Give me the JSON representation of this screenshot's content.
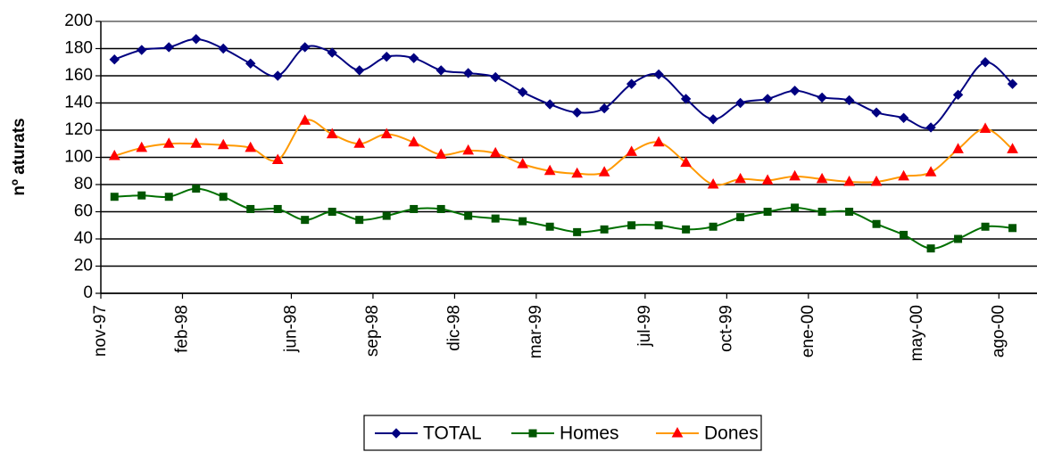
{
  "chart_data": {
    "type": "line",
    "y_label": "nº aturats",
    "x": [
      0.5,
      1.5,
      2.5,
      3.5,
      4.5,
      5.5,
      6.5,
      7.5,
      8.5,
      9.5,
      10.5,
      11.5,
      12.5,
      13.5,
      14.5,
      15.5,
      16.5,
      17.5,
      18.5,
      19.5,
      20.5,
      21.5,
      22.5,
      23.5,
      24.5,
      25.5,
      26.5,
      27.5,
      28.5,
      29.5,
      30.5,
      31.5,
      32.5,
      33.5
    ],
    "xlim": [
      0,
      34.4
    ],
    "xticks": [
      {
        "value": 0,
        "label": "nov-97"
      },
      {
        "value": 3,
        "label": "feb-98"
      },
      {
        "value": 7,
        "label": "jun-98"
      },
      {
        "value": 10,
        "label": "sep-98"
      },
      {
        "value": 13,
        "label": "dic-98"
      },
      {
        "value": 16,
        "label": "mar-99"
      },
      {
        "value": 20,
        "label": "jul-99"
      },
      {
        "value": 23,
        "label": "oct-99"
      },
      {
        "value": 26,
        "label": "ene-00"
      },
      {
        "value": 30,
        "label": "may-00"
      },
      {
        "value": 33,
        "label": "ago-00"
      }
    ],
    "ylim": [
      0,
      200
    ],
    "yticks": [
      0,
      20,
      40,
      60,
      80,
      100,
      120,
      140,
      160,
      180,
      200
    ],
    "grid": true,
    "legend": "bottom",
    "series": [
      {
        "name": "TOTAL",
        "color": "#000080",
        "marker_color": "#000080",
        "marker": "diamond",
        "values": [
          172,
          179,
          181,
          187,
          180,
          169,
          160,
          181,
          177,
          164,
          174,
          173,
          164,
          162,
          159,
          148,
          139,
          133,
          136,
          154,
          161,
          143,
          128,
          140,
          143,
          149,
          144,
          142,
          133,
          129,
          122,
          146,
          170,
          154
        ]
      },
      {
        "name": "Homes",
        "color": "#007000",
        "marker_color": "#005500",
        "marker": "square",
        "values": [
          71,
          72,
          71,
          77,
          71,
          62,
          62,
          54,
          60,
          54,
          57,
          62,
          62,
          57,
          55,
          53,
          49,
          45,
          47,
          50,
          50,
          47,
          49,
          56,
          60,
          63,
          60,
          60,
          51,
          43,
          33,
          40,
          49,
          48
        ]
      },
      {
        "name": "Dones",
        "color": "#ff9900",
        "marker_color": "#ff0000",
        "marker": "triangle",
        "values": [
          101,
          107,
          110,
          110,
          109,
          107,
          98,
          127,
          117,
          110,
          117,
          111,
          102,
          105,
          103,
          95,
          90,
          88,
          89,
          104,
          111,
          96,
          80,
          84,
          83,
          86,
          84,
          82,
          82,
          86,
          89,
          106,
          121,
          106
        ]
      }
    ]
  }
}
